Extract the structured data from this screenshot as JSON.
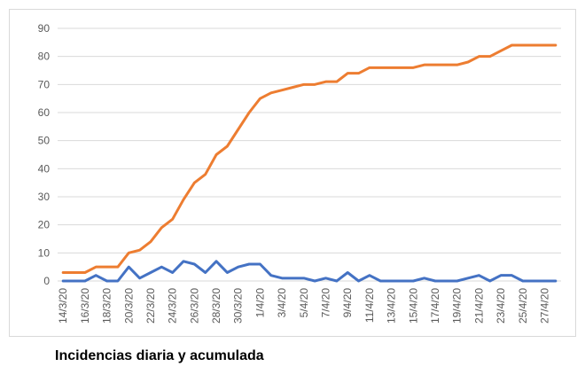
{
  "caption": "Incidencias diaria y acumulada",
  "chart_data": {
    "type": "line",
    "title": "",
    "xlabel": "",
    "ylabel": "",
    "ylim": [
      0,
      90
    ],
    "yticks": [
      0,
      10,
      20,
      30,
      40,
      50,
      60,
      70,
      80,
      90
    ],
    "grid": true,
    "legend": "none",
    "x": [
      "14/3/20",
      "15/3/20",
      "16/3/20",
      "17/3/20",
      "18/3/20",
      "19/3/20",
      "20/3/20",
      "21/3/20",
      "22/3/20",
      "23/3/20",
      "24/3/20",
      "25/3/20",
      "26/3/20",
      "27/3/20",
      "28/3/20",
      "29/3/20",
      "30/3/20",
      "31/3/20",
      "1/4/20",
      "2/4/20",
      "3/4/20",
      "4/4/20",
      "5/4/20",
      "6/4/20",
      "7/4/20",
      "8/4/20",
      "9/4/20",
      "10/4/20",
      "11/4/20",
      "12/4/20",
      "13/4/20",
      "14/4/20",
      "15/4/20",
      "16/4/20",
      "17/4/20",
      "18/4/20",
      "19/4/20",
      "20/4/20",
      "21/4/20",
      "22/4/20",
      "23/4/20",
      "24/4/20",
      "25/4/20",
      "26/4/20",
      "27/4/20",
      "28/4/20"
    ],
    "x_tick_labels": [
      "14/3/20",
      "16/3/20",
      "18/3/20",
      "20/3/20",
      "22/3/20",
      "24/3/20",
      "26/3/20",
      "28/3/20",
      "30/3/20",
      "1/4/20",
      "3/4/20",
      "5/4/20",
      "7/4/20",
      "9/4/20",
      "11/4/20",
      "13/4/20",
      "15/4/20",
      "17/4/20",
      "19/4/20",
      "21/4/20",
      "23/4/20",
      "25/4/20",
      "27/4/20"
    ],
    "series": [
      {
        "color": "#ED7D31",
        "values": [
          3,
          3,
          3,
          5,
          5,
          5,
          10,
          11,
          14,
          19,
          22,
          29,
          35,
          38,
          45,
          48,
          54,
          60,
          65,
          67,
          68,
          69,
          70,
          70,
          71,
          71,
          74,
          74,
          76,
          76,
          76,
          76,
          76,
          77,
          77,
          77,
          77,
          78,
          80,
          80,
          82,
          84,
          84,
          84,
          84,
          84
        ]
      },
      {
        "color": "#4472C4",
        "values": [
          0,
          0,
          0,
          2,
          0,
          0,
          5,
          1,
          3,
          5,
          3,
          7,
          6,
          3,
          7,
          3,
          5,
          6,
          6,
          2,
          1,
          1,
          1,
          0,
          1,
          0,
          3,
          0,
          2,
          0,
          0,
          0,
          0,
          1,
          0,
          0,
          0,
          1,
          2,
          0,
          2,
          2,
          0,
          0,
          0,
          0
        ]
      }
    ]
  }
}
